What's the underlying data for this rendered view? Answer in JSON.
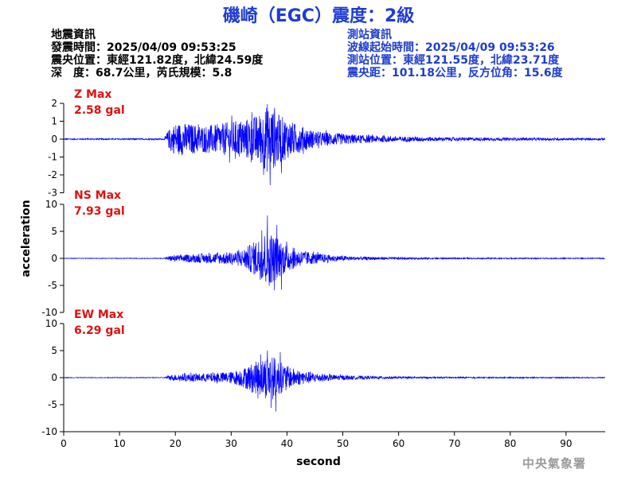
{
  "header": {
    "title": "磯崎（EGC）震度：2級",
    "quake": {
      "heading": "地震資訊",
      "origin_time": "發震時間：2025/04/09 09:53:25",
      "epicenter": "震央位置：東經121.82度，北緯24.59度",
      "depth_mag": "深　度：68.7公里，芮氏規模：5.8"
    },
    "station": {
      "heading": "測站資訊",
      "wave_start": "波線起始時間：2025/04/09 09:53:26",
      "location": "測站位置：東經121.55度，北緯23.71度",
      "distance": "震央距：101.18公里，反方位角：15.6度"
    }
  },
  "watermark": "中央氣象署",
  "colors": {
    "trace": "#0000ff",
    "title": "#1e3cd2",
    "max_label": "#e01010",
    "axis": "#000000"
  },
  "chart_data": {
    "type": "line",
    "xlabel": "second",
    "ylabel": "acceleration",
    "xlim": [
      0,
      97
    ],
    "xticks": [
      0,
      10,
      20,
      30,
      40,
      50,
      60,
      70,
      80,
      90
    ],
    "duration_s": 97,
    "panels": [
      {
        "name": "Z",
        "max_title": "Z Max",
        "max_value": "2.58 gal",
        "ylim": [
          -3,
          2.4
        ],
        "yticks": [
          -3,
          -2,
          -1,
          0,
          1,
          2
        ],
        "envelope": {
          "t": [
            0,
            18,
            18.6,
            20,
            22,
            25,
            28,
            30,
            32,
            34,
            35.5,
            36.5,
            37.5,
            38.5,
            40,
            42,
            45,
            50,
            55,
            60,
            70,
            80,
            97
          ],
          "a": [
            0.03,
            0.04,
            0.45,
            0.9,
            0.9,
            0.75,
            0.85,
            1.0,
            1.1,
            1.25,
            1.5,
            1.9,
            1.7,
            1.4,
            1.1,
            0.8,
            0.45,
            0.3,
            0.2,
            0.15,
            0.1,
            0.08,
            0.06
          ]
        },
        "peaks": [
          {
            "t": 36.5,
            "v": 1.95
          },
          {
            "t": 37.0,
            "v": -2.58
          },
          {
            "t": 37.8,
            "v": 1.75
          },
          {
            "t": 39.0,
            "v": -1.9
          },
          {
            "t": 33.7,
            "v": 1.5
          },
          {
            "t": 35.8,
            "v": -2.0
          }
        ]
      },
      {
        "name": "NS",
        "max_title": "NS Max",
        "max_value": "7.93 gal",
        "ylim": [
          -10,
          10
        ],
        "yticks": [
          -10,
          -5,
          0,
          5,
          10
        ],
        "envelope": {
          "t": [
            0,
            18,
            19,
            22,
            26,
            30,
            32,
            34,
            35.5,
            36.5,
            37.5,
            38.5,
            40,
            42,
            45,
            48,
            52,
            60,
            70,
            97
          ],
          "a": [
            0.05,
            0.06,
            0.5,
            0.7,
            0.9,
            1.2,
            1.6,
            3.0,
            4.2,
            5.5,
            4.5,
            3.8,
            2.5,
            1.6,
            1.0,
            0.6,
            0.35,
            0.2,
            0.12,
            0.08
          ]
        },
        "peaks": [
          {
            "t": 36.5,
            "v": 7.93
          },
          {
            "t": 37.7,
            "v": -5.9
          },
          {
            "t": 38.2,
            "v": 6.2
          },
          {
            "t": 39.0,
            "v": -5.8
          },
          {
            "t": 35.5,
            "v": 5.2
          },
          {
            "t": 36.9,
            "v": -4.3
          }
        ]
      },
      {
        "name": "EW",
        "max_title": "EW Max",
        "max_value": "6.29 gal",
        "ylim": [
          -10,
          10
        ],
        "yticks": [
          -10,
          -5,
          0,
          5,
          10
        ],
        "envelope": {
          "t": [
            0,
            18,
            19,
            22,
            26,
            30,
            32,
            34,
            35.5,
            36.5,
            37.5,
            38.5,
            40,
            42,
            45,
            48,
            52,
            60,
            70,
            97
          ],
          "a": [
            0.05,
            0.06,
            0.5,
            0.7,
            0.8,
            1.1,
            1.7,
            2.8,
            3.4,
            4.2,
            4.0,
            3.2,
            2.2,
            1.4,
            0.9,
            0.55,
            0.35,
            0.2,
            0.12,
            0.08
          ]
        },
        "peaks": [
          {
            "t": 36.5,
            "v": 5.0
          },
          {
            "t": 38.0,
            "v": -6.29
          },
          {
            "t": 37.2,
            "v": -5.6
          },
          {
            "t": 38.8,
            "v": 4.7
          },
          {
            "t": 35.3,
            "v": 4.3
          }
        ]
      }
    ]
  }
}
